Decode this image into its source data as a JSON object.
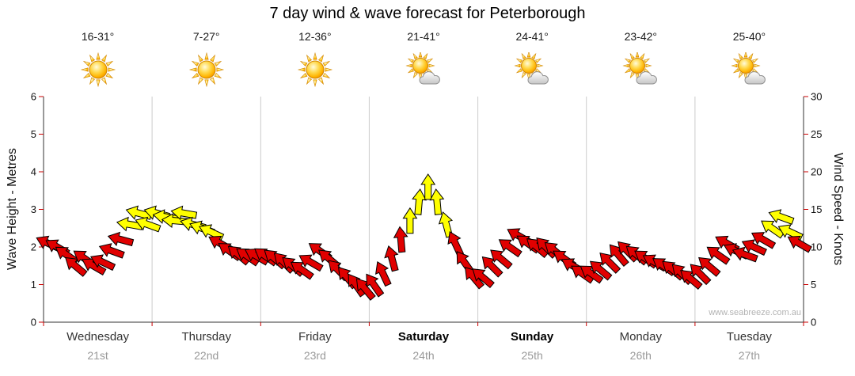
{
  "title": "7 day wind & wave forecast for Peterborough",
  "watermark": "www.seabreeze.com.au",
  "days": [
    {
      "name": "Wednesday",
      "date": "21st",
      "temp": "16-31°",
      "icon": "sunny",
      "weekend": false
    },
    {
      "name": "Thursday",
      "date": "22nd",
      "temp": "7-27°",
      "icon": "sunny",
      "weekend": false
    },
    {
      "name": "Friday",
      "date": "23rd",
      "temp": "12-36°",
      "icon": "sunny",
      "weekend": false
    },
    {
      "name": "Saturday",
      "date": "24th",
      "temp": "21-41°",
      "icon": "partly-cloudy",
      "weekend": true
    },
    {
      "name": "Sunday",
      "date": "25th",
      "temp": "24-41°",
      "icon": "partly-cloudy",
      "weekend": true
    },
    {
      "name": "Monday",
      "date": "26th",
      "temp": "23-42°",
      "icon": "partly-cloudy",
      "weekend": false
    },
    {
      "name": "Tuesday",
      "date": "27th",
      "temp": "25-40°",
      "icon": "partly-cloudy",
      "weekend": false
    }
  ],
  "chart_data": {
    "type": "wind-arrow-time-series",
    "title": "7 day wind & wave forecast for Peterborough",
    "left_axis": {
      "label": "Wave Height - Metres",
      "min": 0,
      "max": 6,
      "tick_step": 1
    },
    "right_axis": {
      "label": "Wind Speed - Knots",
      "min": 0,
      "max": 30,
      "tick_step": 5
    },
    "grid": "vertical-day-boundaries",
    "legend": "none",
    "arrow_colors": {
      "light_wind": "#e00000",
      "moderate_wind": "#ffff00"
    },
    "moderate_threshold_knots": 12,
    "sample_interval_hours": 2,
    "wind_knots_by_day": [
      [
        10.5,
        10,
        9,
        7.5,
        8.5,
        7.5,
        8,
        9.5,
        11,
        13,
        14.5,
        13
      ],
      [
        14.5,
        14,
        13.5,
        14.5,
        13,
        12.5,
        12,
        10.5,
        9.5,
        9,
        8.8,
        8.8
      ],
      [
        8.8,
        8.5,
        8,
        7.5,
        7,
        8,
        9.5,
        8.5,
        7,
        6,
        5,
        4.5
      ],
      [
        5,
        6.5,
        8.5,
        11,
        13.5,
        16,
        18,
        16,
        13,
        10.5,
        8,
        6
      ],
      [
        6,
        7.5,
        8.5,
        10,
        11.5,
        10.5,
        10,
        10,
        9.5,
        8.5,
        7.5,
        6.5
      ],
      [
        6.5,
        7,
        8,
        9,
        9.5,
        9,
        8.5,
        8,
        7.5,
        7,
        6.5,
        5.8
      ],
      [
        6.5,
        7.5,
        9,
        10.5,
        9.5,
        9,
        10,
        11,
        12.5,
        14,
        12,
        10.5
      ]
    ],
    "arrow_rotation_deg_by_day": [
      [
        205,
        210,
        215,
        220,
        215,
        210,
        205,
        200,
        195,
        190,
        195,
        200
      ],
      [
        195,
        190,
        185,
        190,
        195,
        200,
        205,
        210,
        215,
        220,
        215,
        210
      ],
      [
        215,
        220,
        225,
        220,
        215,
        210,
        215,
        220,
        225,
        230,
        235,
        230
      ],
      [
        235,
        245,
        255,
        265,
        270,
        275,
        270,
        265,
        255,
        245,
        235,
        230
      ],
      [
        220,
        225,
        220,
        215,
        210,
        215,
        220,
        225,
        220,
        215,
        210,
        215
      ],
      [
        215,
        220,
        225,
        230,
        225,
        220,
        215,
        210,
        215,
        220,
        225,
        220
      ],
      [
        225,
        220,
        215,
        210,
        205,
        200,
        205,
        210,
        215,
        200,
        205,
        210
      ]
    ]
  }
}
